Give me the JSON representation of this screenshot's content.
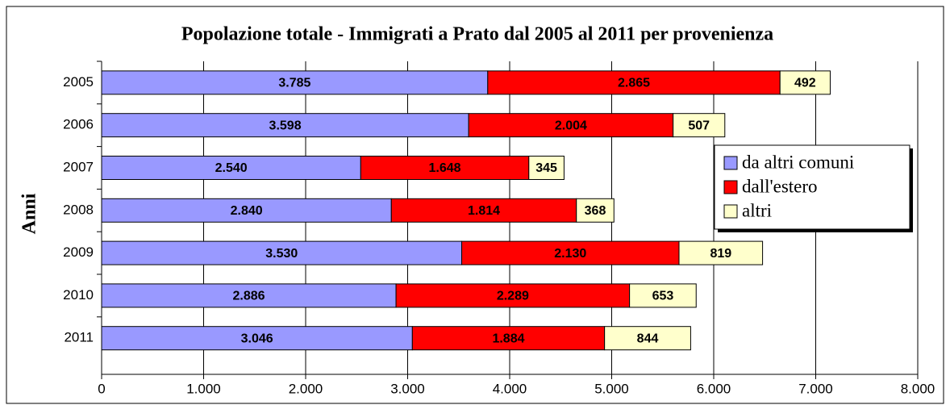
{
  "chart_data": {
    "type": "stacked-barh",
    "title": "Popolazione totale - Immigrati a Prato dal 2005 al 2011 per provenienza",
    "y_label": "Anni",
    "categories": [
      "2005",
      "2006",
      "2007",
      "2008",
      "2009",
      "2010",
      "2011"
    ],
    "series": [
      {
        "name": "da altri comuni",
        "color": "#9999ff",
        "values": [
          3785,
          3598,
          2540,
          2840,
          3530,
          2886,
          3046
        ],
        "value_labels": [
          "3.785",
          "3.598",
          "2.540",
          "2.840",
          "3.530",
          "2.886",
          "3.046"
        ]
      },
      {
        "name": "dall'estero",
        "color": "#ff0000",
        "values": [
          2865,
          2004,
          1648,
          1814,
          2130,
          2289,
          1884
        ],
        "value_labels": [
          "2.865",
          "2.004",
          "1.648",
          "1.814",
          "2.130",
          "2.289",
          "1.884"
        ]
      },
      {
        "name": "altri",
        "color": "#ffffcc",
        "values": [
          492,
          507,
          345,
          368,
          819,
          653,
          844
        ],
        "value_labels": [
          "492",
          "507",
          "345",
          "368",
          "819",
          "653",
          "844"
        ]
      }
    ],
    "xlim": [
      0,
      8000
    ],
    "xticks": [
      0,
      {
        "value": 1000,
        "label": "1.000"
      },
      {
        "value": 2000,
        "label": "2.000"
      },
      {
        "value": 3000,
        "label": "3.000"
      },
      {
        "value": 4000,
        "label": "4.000"
      },
      {
        "value": 5000,
        "label": "5.000"
      },
      {
        "value": 6000,
        "label": "6.000"
      },
      {
        "value": 7000,
        "label": "7.000"
      },
      {
        "value": 8000,
        "label": "8.000"
      }
    ],
    "grid": true,
    "legend": "right"
  }
}
